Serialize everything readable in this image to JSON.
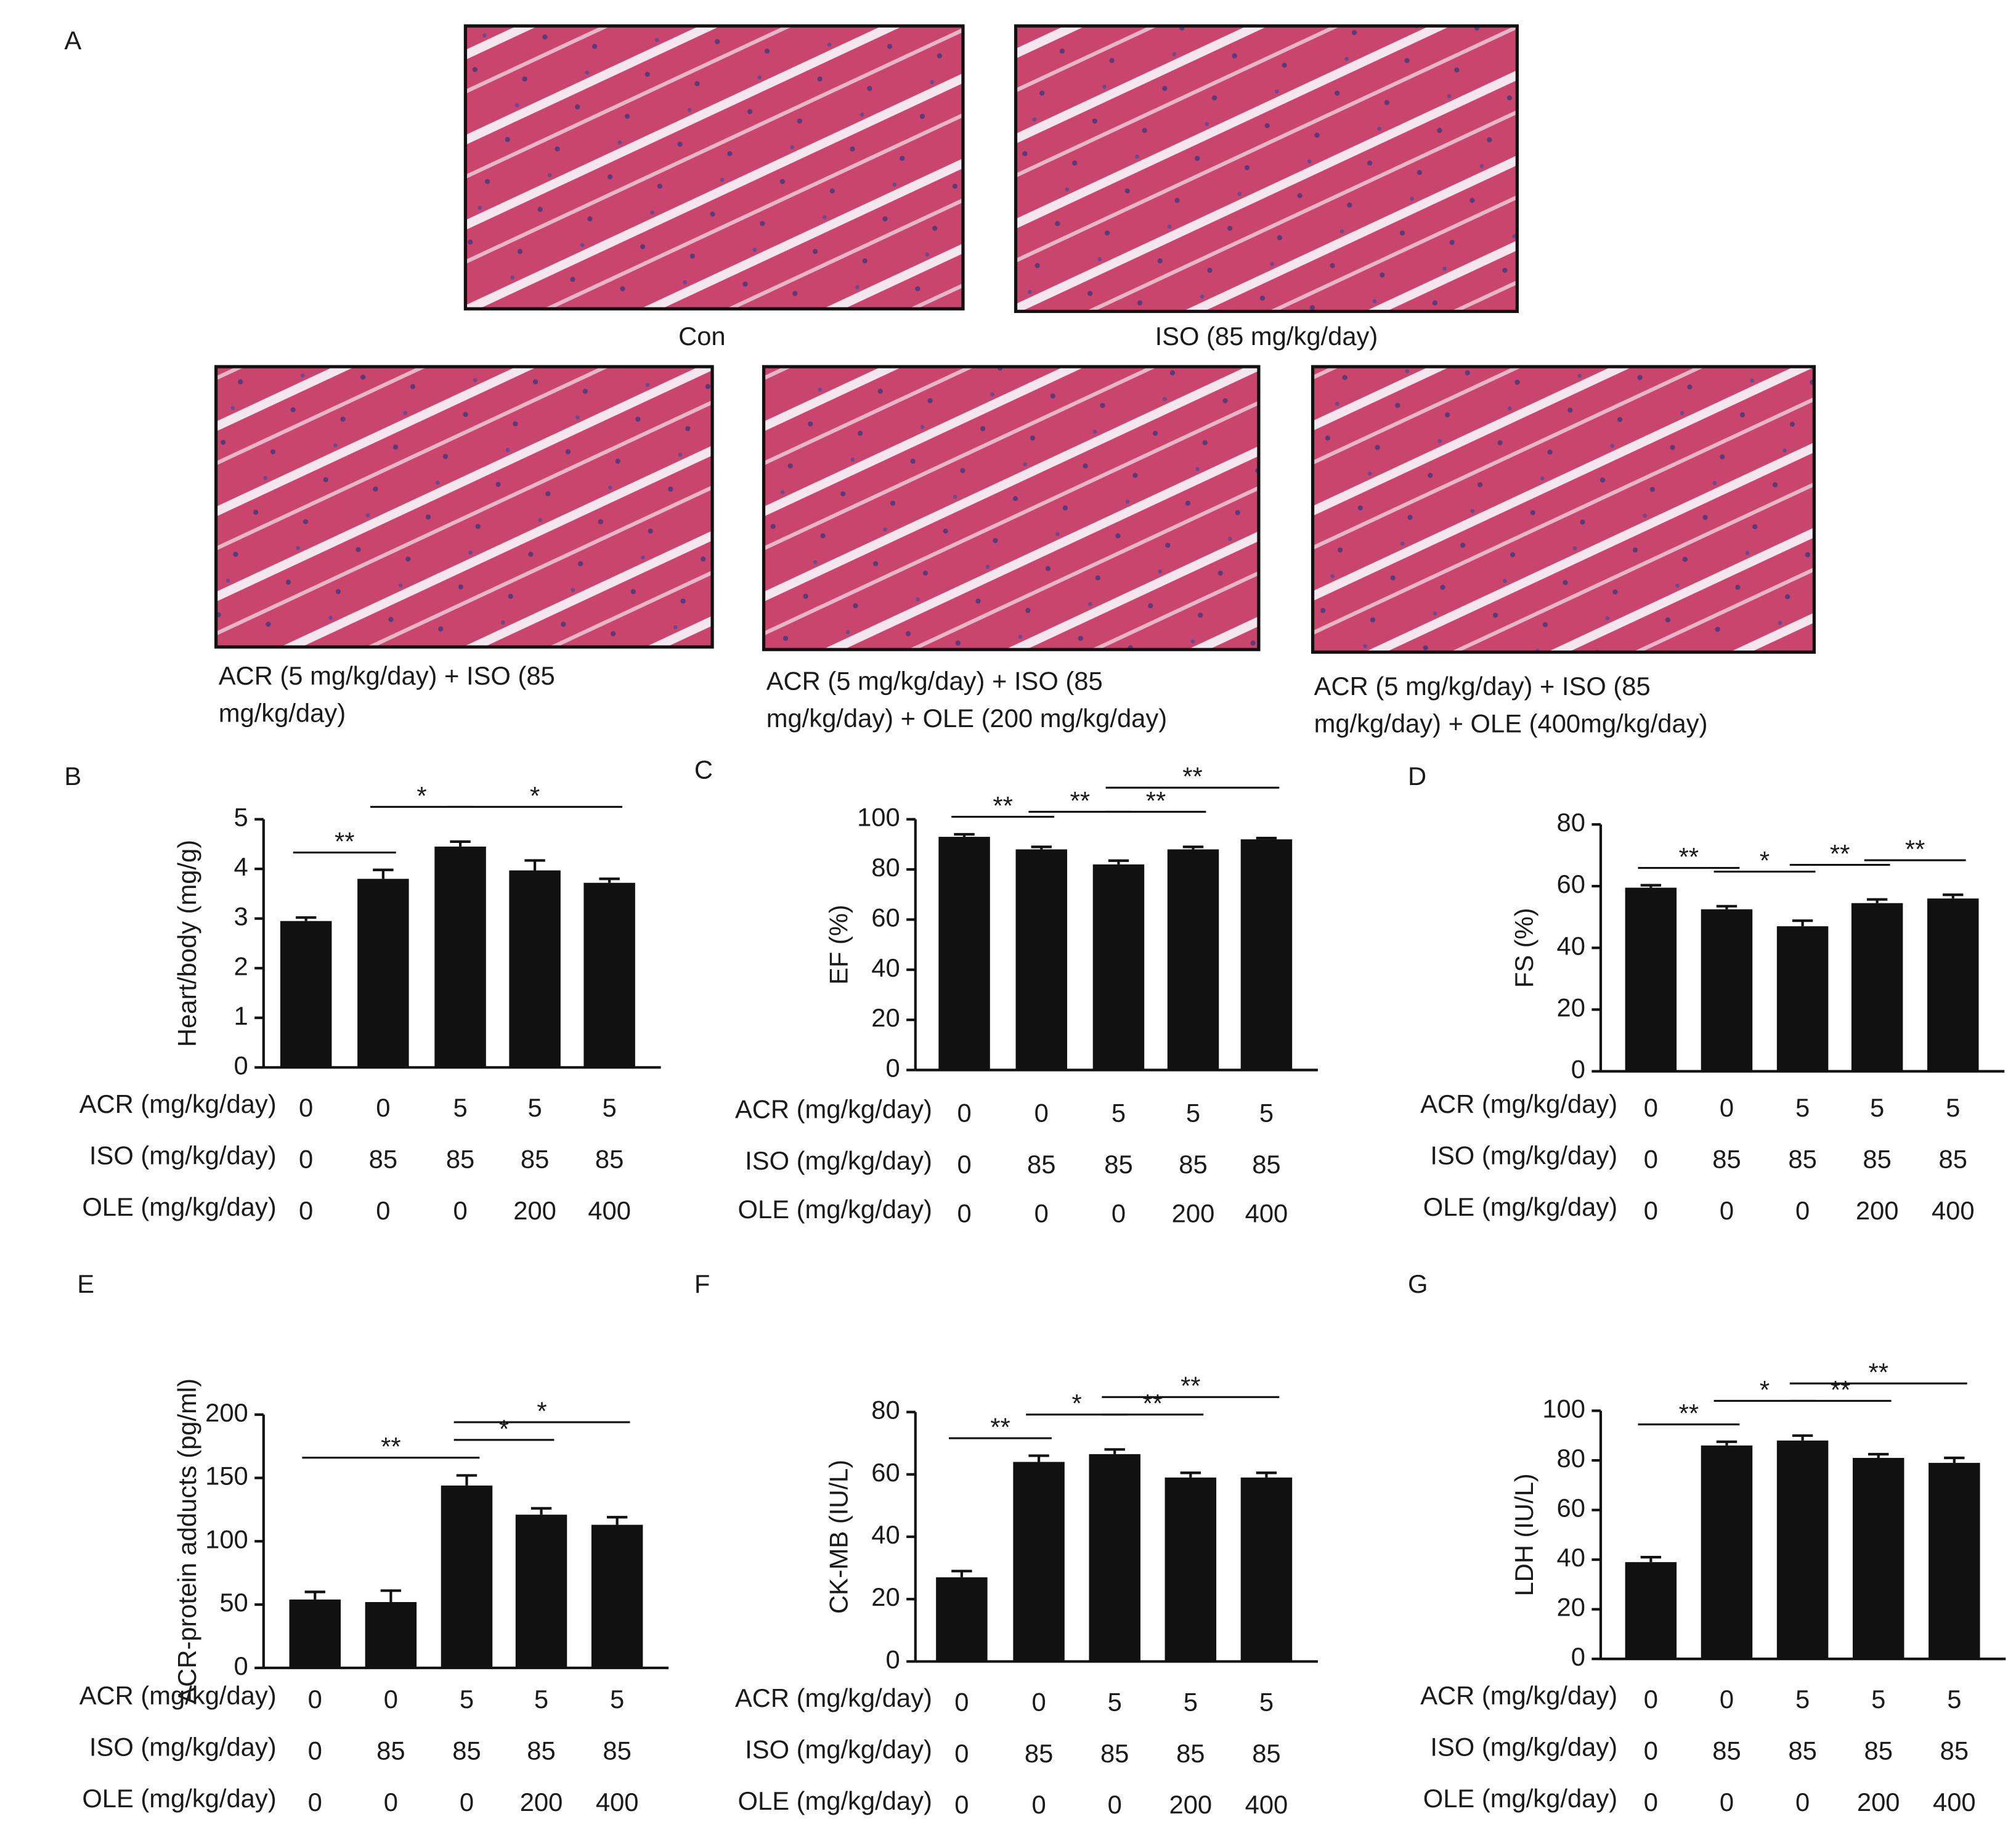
{
  "panel_a": {
    "label": "A",
    "images": [
      {
        "caption": [
          "Con"
        ]
      },
      {
        "caption": [
          "ISO (85 mg/kg/day)"
        ]
      },
      {
        "caption": [
          "ACR (5 mg/kg/day) + ISO (85",
          " mg/kg/day)"
        ]
      },
      {
        "caption": [
          "ACR (5 mg/kg/day) + ISO (85",
          "mg/kg/day) + OLE (200 mg/kg/day)"
        ]
      },
      {
        "caption": [
          "ACR (5 mg/kg/day) + ISO (85",
          "mg/kg/day) + OLE (400mg/kg/day)"
        ]
      }
    ]
  },
  "chart_data": [
    {
      "type": "bar",
      "label": "B",
      "ylabel": "Heart/body (mg/g)",
      "color": "#111111",
      "values": [
        2.95,
        3.8,
        4.45,
        3.97,
        3.72
      ],
      "errors": [
        0.07,
        0.18,
        0.1,
        0.2,
        0.08
      ],
      "ylim": [
        0,
        5
      ],
      "yticks": [
        0,
        1,
        2,
        3,
        4,
        5
      ],
      "row_labels": [
        "ACR (mg/kg/day)",
        "ISO (mg/kg/day)",
        "OLE (mg/kg/day)"
      ],
      "rows": [
        [
          0,
          0,
          5,
          5,
          5
        ],
        [
          0,
          85,
          85,
          85,
          85
        ],
        [
          0,
          0,
          0,
          200,
          400
        ]
      ],
      "annotations": [
        {
          "text": "**",
          "from": 0,
          "to": 1
        },
        {
          "text": "*",
          "from": 1,
          "to": 2
        },
        {
          "text": "*",
          "from": 2,
          "to": 4
        }
      ]
    },
    {
      "type": "bar",
      "label": "C",
      "ylabel": "EF (%)",
      "color": "#111111",
      "values": [
        93,
        88,
        82,
        88,
        92
      ],
      "errors": [
        1,
        1,
        1.5,
        1,
        0.5
      ],
      "ylim": [
        0,
        100
      ],
      "yticks": [
        0,
        20,
        40,
        60,
        80,
        100
      ],
      "row_labels": [
        "ACR (mg/kg/day)",
        "ISO (mg/kg/day)",
        "OLE (mg/kg/day)"
      ],
      "rows": [
        [
          0,
          0,
          5,
          5,
          5
        ],
        [
          0,
          85,
          85,
          85,
          85
        ],
        [
          0,
          0,
          0,
          200,
          400
        ]
      ],
      "annotations": [
        {
          "text": "**",
          "from": 0,
          "to": 1
        },
        {
          "text": "**",
          "from": 1,
          "to": 2
        },
        {
          "text": "**",
          "from": 2,
          "to": 3
        },
        {
          "text": "**",
          "from": 2,
          "to": 4
        }
      ]
    },
    {
      "type": "bar",
      "label": "D",
      "ylabel": "FS (%)",
      "color": "#111111",
      "values": [
        59.5,
        52.5,
        47,
        54.5,
        56
      ],
      "errors": [
        0.8,
        1,
        1.8,
        1.2,
        1.2
      ],
      "ylim": [
        0,
        80
      ],
      "yticks": [
        0,
        20,
        40,
        60,
        80
      ],
      "row_labels": [
        "ACR (mg/kg/day)",
        "ISO (mg/kg/day)",
        "OLE (mg/kg/day)"
      ],
      "rows": [
        [
          0,
          0,
          5,
          5,
          5
        ],
        [
          0,
          85,
          85,
          85,
          85
        ],
        [
          0,
          0,
          0,
          200,
          400
        ]
      ],
      "annotations": [
        {
          "text": "**",
          "from": 0,
          "to": 1
        },
        {
          "text": "*",
          "from": 1,
          "to": 2
        },
        {
          "text": "**",
          "from": 2,
          "to": 3
        },
        {
          "text": "**",
          "from": 3,
          "to": 4
        }
      ]
    },
    {
      "type": "bar",
      "label": "E",
      "ylabel": "ACR-protein adducts (pg/ml)",
      "color": "#111111",
      "values": [
        54,
        52,
        144,
        121,
        113
      ],
      "errors": [
        6,
        9,
        8,
        5,
        6
      ],
      "ylim": [
        0,
        200
      ],
      "yticks": [
        0,
        50,
        100,
        150,
        200
      ],
      "row_labels": [
        "ACR (mg/kg/day)",
        "ISO (mg/kg/day)",
        "OLE (mg/kg/day)"
      ],
      "rows": [
        [
          0,
          0,
          5,
          5,
          5
        ],
        [
          0,
          85,
          85,
          85,
          85
        ],
        [
          0,
          0,
          0,
          200,
          400
        ]
      ],
      "annotations": [
        {
          "text": "**",
          "from": 0,
          "to": 2
        },
        {
          "text": "*",
          "from": 2,
          "to": 3
        },
        {
          "text": "*",
          "from": 2,
          "to": 4
        }
      ]
    },
    {
      "type": "bar",
      "label": "F",
      "ylabel": "CK-MB (IU/L)",
      "color": "#111111",
      "values": [
        27,
        64,
        66.5,
        59,
        59
      ],
      "errors": [
        2,
        2,
        1.5,
        1.5,
        1.5
      ],
      "ylim": [
        0,
        80
      ],
      "yticks": [
        0,
        20,
        40,
        60,
        80
      ],
      "row_labels": [
        "ACR (mg/kg/day)",
        "ISO (mg/kg/day)",
        "OLE (mg/kg/day)"
      ],
      "rows": [
        [
          0,
          0,
          5,
          5,
          5
        ],
        [
          0,
          85,
          85,
          85,
          85
        ],
        [
          0,
          0,
          0,
          200,
          400
        ]
      ],
      "annotations": [
        {
          "text": "**",
          "from": 0,
          "to": 1
        },
        {
          "text": "*",
          "from": 1,
          "to": 2
        },
        {
          "text": "**",
          "from": 2,
          "to": 3
        },
        {
          "text": "**",
          "from": 2,
          "to": 4
        }
      ]
    },
    {
      "type": "bar",
      "label": "G",
      "ylabel": "LDH (IU/L)",
      "color": "#111111",
      "values": [
        39,
        86,
        88,
        81,
        79
      ],
      "errors": [
        2,
        1.5,
        2,
        1.5,
        2
      ],
      "ylim": [
        0,
        100
      ],
      "yticks": [
        0,
        20,
        40,
        60,
        80,
        100
      ],
      "row_labels": [
        "ACR (mg/kg/day)",
        "ISO (mg/kg/day)",
        "OLE (mg/kg/day)"
      ],
      "rows": [
        [
          0,
          0,
          5,
          5,
          5
        ],
        [
          0,
          85,
          85,
          85,
          85
        ],
        [
          0,
          0,
          0,
          200,
          400
        ]
      ],
      "annotations": [
        {
          "text": "**",
          "from": 0,
          "to": 1
        },
        {
          "text": "*",
          "from": 1,
          "to": 2
        },
        {
          "text": "**",
          "from": 2,
          "to": 3
        },
        {
          "text": "**",
          "from": 2,
          "to": 4
        }
      ]
    }
  ]
}
